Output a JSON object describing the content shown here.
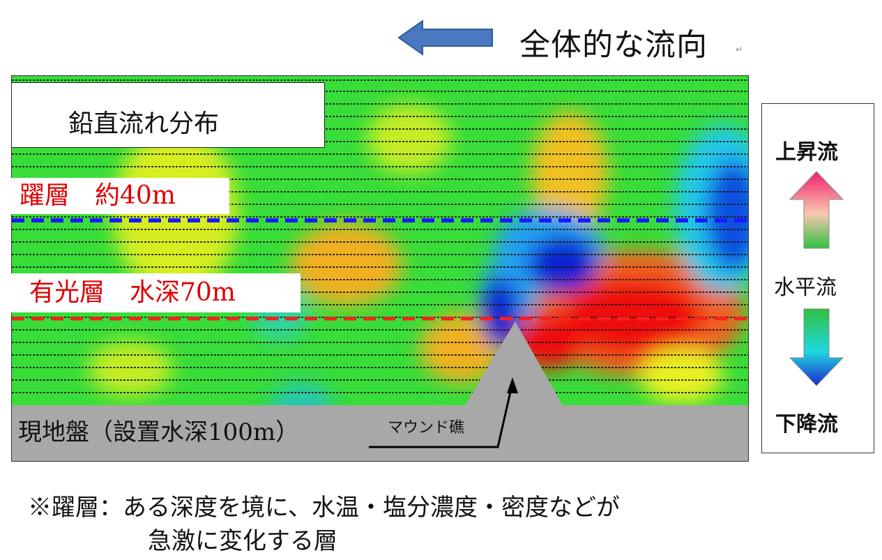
{
  "header": {
    "flow_label": "全体的な流向"
  },
  "panel": {
    "title": "鉛直流れ分布",
    "thermocline_label": "躍層　約40m",
    "euphotic_label": "有光層　水深70m",
    "ground_label": "現地盤（設置水深100m）",
    "mound_label": "マウンド礁"
  },
  "legend": {
    "upflow": "上昇流",
    "horizontal": "水平流",
    "downflow": "下降流"
  },
  "note": {
    "line1": "※躍層：ある深度を境に、水温・塩分濃度・密度などが",
    "line2": "急激に変化する層"
  },
  "colors": {
    "thermocline_line": "#1a1aff",
    "euphotic_line": "#ff2020",
    "label_text": "#e00000",
    "flow_arrow": "#4a78c0",
    "ground": "#a8a8a8"
  },
  "icons": {
    "flow_arrow": "left-arrow-icon",
    "upflow_arrow": "up-arrow-icon",
    "downflow_arrow": "down-arrow-icon"
  }
}
